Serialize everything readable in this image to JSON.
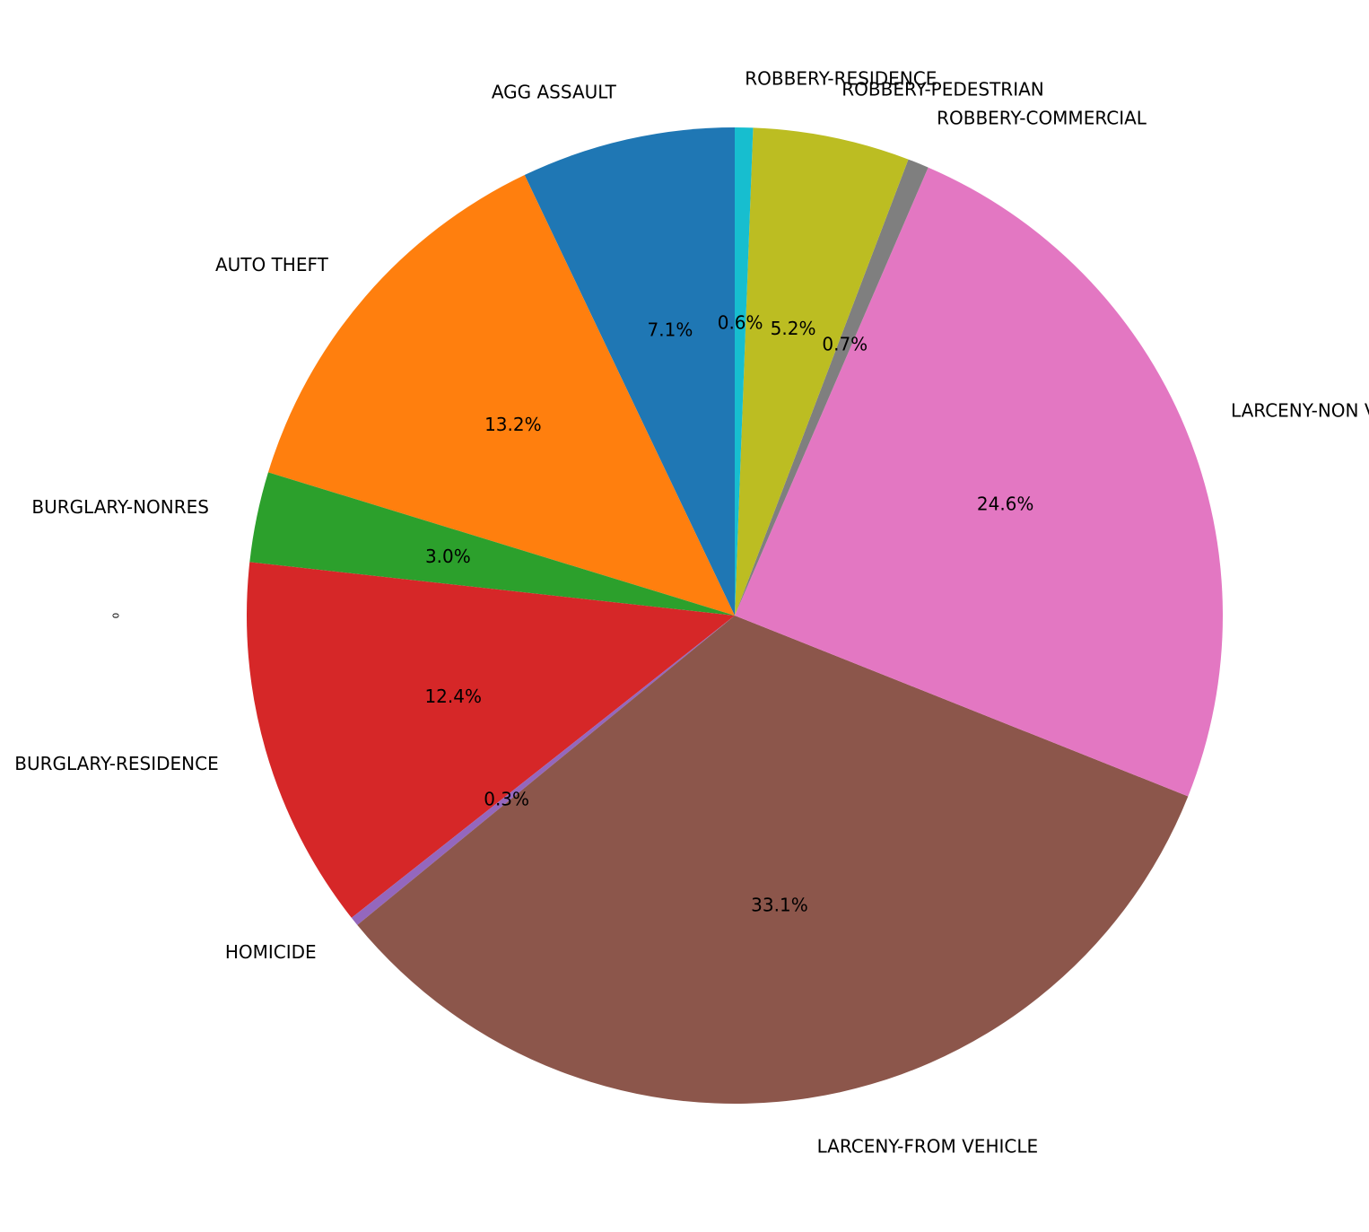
{
  "chart_data": {
    "type": "pie",
    "ylabel": "0",
    "start_angle_deg": 90,
    "direction": "counterclockwise",
    "slices": [
      {
        "label": "AGG ASSAULT",
        "value": 7.1,
        "pct_label": "7.1%",
        "color": "#1f77b4"
      },
      {
        "label": "AUTO THEFT",
        "value": 13.2,
        "pct_label": "13.2%",
        "color": "#ff7f0e"
      },
      {
        "label": "BURGLARY-NONRES",
        "value": 3.0,
        "pct_label": "3.0%",
        "color": "#2ca02c"
      },
      {
        "label": "BURGLARY-RESIDENCE",
        "value": 12.4,
        "pct_label": "12.4%",
        "color": "#d62728"
      },
      {
        "label": "HOMICIDE",
        "value": 0.3,
        "pct_label": "0.3%",
        "color": "#9467bd"
      },
      {
        "label": "LARCENY-FROM VEHICLE",
        "value": 33.1,
        "pct_label": "33.1%",
        "color": "#8c564b"
      },
      {
        "label": "LARCENY-NON VEHICLE",
        "value": 24.6,
        "pct_label": "24.6%",
        "color": "#e377c2"
      },
      {
        "label": "ROBBERY-COMMERCIAL",
        "value": 0.7,
        "pct_label": "0.7%",
        "color": "#7f7f7f"
      },
      {
        "label": "ROBBERY-PEDESTRIAN",
        "value": 5.2,
        "pct_label": "5.2%",
        "color": "#bcbd22"
      },
      {
        "label": "ROBBERY-RESIDENCE",
        "value": 0.6,
        "pct_label": "0.6%",
        "color": "#17becf"
      }
    ]
  }
}
